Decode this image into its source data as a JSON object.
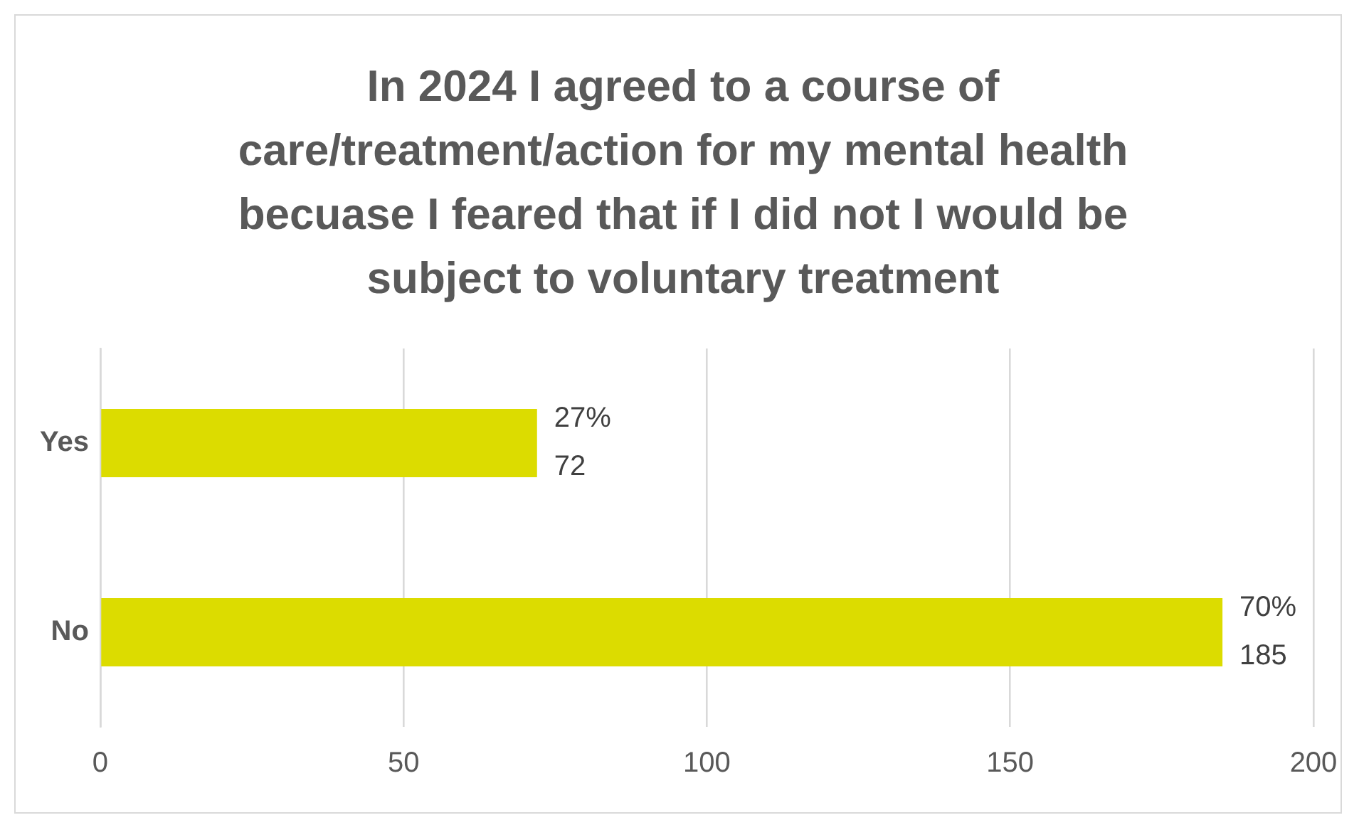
{
  "chart_data": {
    "type": "bar",
    "orientation": "horizontal",
    "title": "In 2024 I agreed to a course of care/treatment/action for my mental health becuase I feared that if I did not I would be subject to voluntary treatment",
    "categories": [
      "Yes",
      "No"
    ],
    "series": [
      {
        "color": "#dcdc00",
        "values": [
          72,
          185
        ],
        "value_labels": [
          "27%\n72",
          "70%\n185"
        ]
      }
    ],
    "xlim": [
      0,
      200
    ],
    "xticks": [
      0,
      50,
      100,
      150,
      200
    ],
    "grid": "x",
    "legend": false
  }
}
